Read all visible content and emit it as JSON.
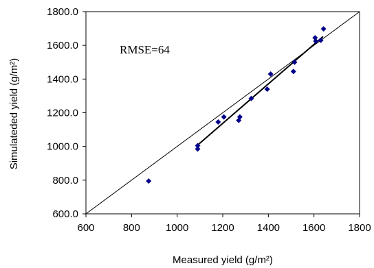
{
  "chart_data": {
    "type": "scatter",
    "title": "",
    "xlabel": "Measured yield (g/m²)",
    "ylabel": "Simulateded yield (g/m²)",
    "annotation": "RMSE=64",
    "xlim": [
      600,
      1800
    ],
    "ylim": [
      600,
      1800
    ],
    "x_ticks": [
      "600",
      "800",
      "1000",
      "1200",
      "1400",
      "1600",
      "1800"
    ],
    "y_ticks": [
      "600.0",
      "800.0",
      "1000.0",
      "1200.0",
      "1400.0",
      "1600.0",
      "1800.0"
    ],
    "grid": false,
    "legend": "none",
    "reference_line": "1:1",
    "trend_line": {
      "x_range": [
        1090,
        1640
      ]
    },
    "marker_color": "#00008b",
    "points": [
      {
        "x": 875,
        "y": 795
      },
      {
        "x": 1090,
        "y": 1005
      },
      {
        "x": 1090,
        "y": 985
      },
      {
        "x": 1180,
        "y": 1145
      },
      {
        "x": 1205,
        "y": 1175
      },
      {
        "x": 1270,
        "y": 1155
      },
      {
        "x": 1275,
        "y": 1175
      },
      {
        "x": 1325,
        "y": 1285
      },
      {
        "x": 1395,
        "y": 1340
      },
      {
        "x": 1410,
        "y": 1430
      },
      {
        "x": 1510,
        "y": 1445
      },
      {
        "x": 1515,
        "y": 1500
      },
      {
        "x": 1605,
        "y": 1645
      },
      {
        "x": 1608,
        "y": 1625
      },
      {
        "x": 1630,
        "y": 1630
      },
      {
        "x": 1642,
        "y": 1698
      }
    ]
  }
}
